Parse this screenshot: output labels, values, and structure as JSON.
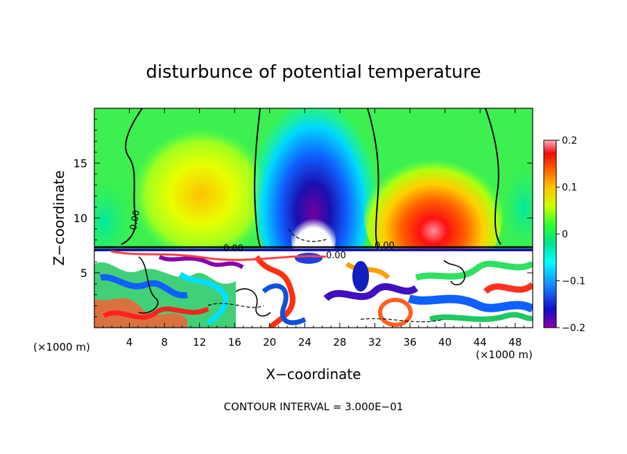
{
  "chart_data": {
    "type": "heatmap",
    "title": "disturbunce of potential temperature",
    "xlabel": "X−coordinate",
    "ylabel": "Z−coordinate",
    "x_unit": "(×1000 m)",
    "z_unit": "(×1000 m)",
    "xlim": [
      0,
      50
    ],
    "ylim": [
      0,
      20
    ],
    "x_ticks": [
      4,
      8,
      12,
      16,
      20,
      24,
      28,
      32,
      36,
      40,
      44,
      48
    ],
    "x_tick_labels": [
      "4",
      "8",
      "12",
      "16",
      "20",
      "24",
      "28",
      "32",
      "36",
      "40",
      "44",
      "48"
    ],
    "y_ticks": [
      5,
      10,
      15
    ],
    "y_tick_labels": [
      "5",
      "10",
      "15"
    ],
    "colorbar": {
      "range": [
        -0.2,
        0.2
      ],
      "ticks": [
        -0.2,
        -0.1,
        0,
        0.1,
        0.2
      ],
      "tick_labels": [
        "−0.2",
        "−0.1",
        "0",
        "0.1",
        "0.2"
      ]
    },
    "contour_interval_text": "CONTOUR INTERVAL =  3.000E−01",
    "contour_labels": [
      "0.00",
      "0.00",
      "0.00",
      "0.00"
    ],
    "features": [
      {
        "name": "warm region",
        "x": 12,
        "z": 12,
        "value": 0.08
      },
      {
        "name": "cold core",
        "x": 25,
        "z": 12,
        "value": -0.2
      },
      {
        "name": "warm region",
        "x": 39,
        "z": 9.5,
        "value": 0.18
      }
    ]
  }
}
